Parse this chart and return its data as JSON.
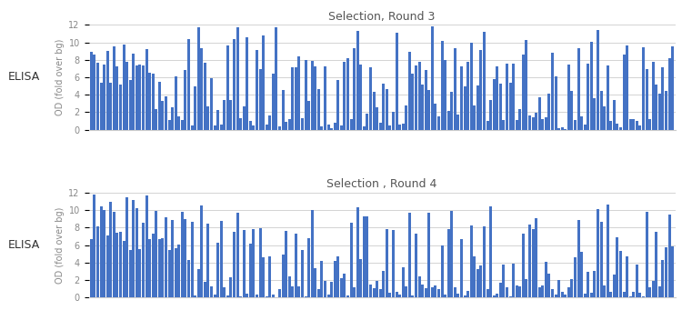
{
  "title_r3": "Selection, Round 3",
  "title_r4": "Selection , Round 4",
  "ylabel": "OD (fold over bg)",
  "elisa_label": "ELISA",
  "bar_color": "#4472C4",
  "ylim": [
    0,
    12
  ],
  "yticks": [
    0,
    2,
    4,
    6,
    8,
    10,
    12
  ],
  "n_bars": 180,
  "bg_color": "#ffffff",
  "title_color": "#555555",
  "grid_color": "#cccccc",
  "tick_color": "#888888",
  "title_fontsize": 9,
  "ylabel_fontsize": 7,
  "ytick_fontsize": 7,
  "elisa_fontsize": 9,
  "bar_width": 0.85
}
